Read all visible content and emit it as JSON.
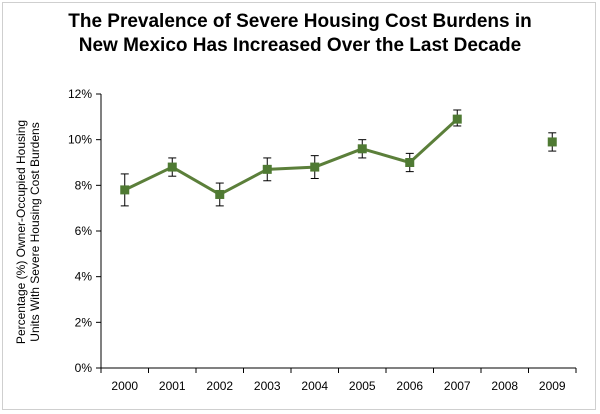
{
  "chart_data": {
    "type": "line",
    "title": [
      "The Prevalence of Severe Housing Cost Burdens in",
      "New Mexico Has Increased Over the Last Decade"
    ],
    "ylabel": [
      "Percentage (%) Owner-Occupied Housing",
      "Units With Severe Housing Cost Burdens"
    ],
    "xlabel": "",
    "categories": [
      "2000",
      "2001",
      "2002",
      "2003",
      "2004",
      "2005",
      "2006",
      "2007",
      "2008",
      "2009"
    ],
    "yticks": [
      "0%",
      "2%",
      "4%",
      "6%",
      "8%",
      "10%",
      "12%"
    ],
    "ylim": [
      0,
      12
    ],
    "series": [
      {
        "values": [
          7.8,
          8.8,
          7.6,
          8.7,
          8.8,
          9.6,
          9.0,
          10.9,
          null,
          9.9
        ],
        "error_low": [
          7.1,
          8.4,
          7.1,
          8.2,
          8.3,
          9.2,
          8.6,
          10.6,
          null,
          9.5
        ],
        "error_high": [
          8.5,
          9.2,
          8.1,
          9.2,
          9.3,
          10.0,
          9.4,
          11.3,
          null,
          10.3
        ]
      }
    ],
    "colors": {
      "line": "#5b7f3a",
      "marker": "#4f7a33",
      "error_bar": "#000000",
      "axis": "#000000"
    },
    "grid": false,
    "legend": "none"
  }
}
